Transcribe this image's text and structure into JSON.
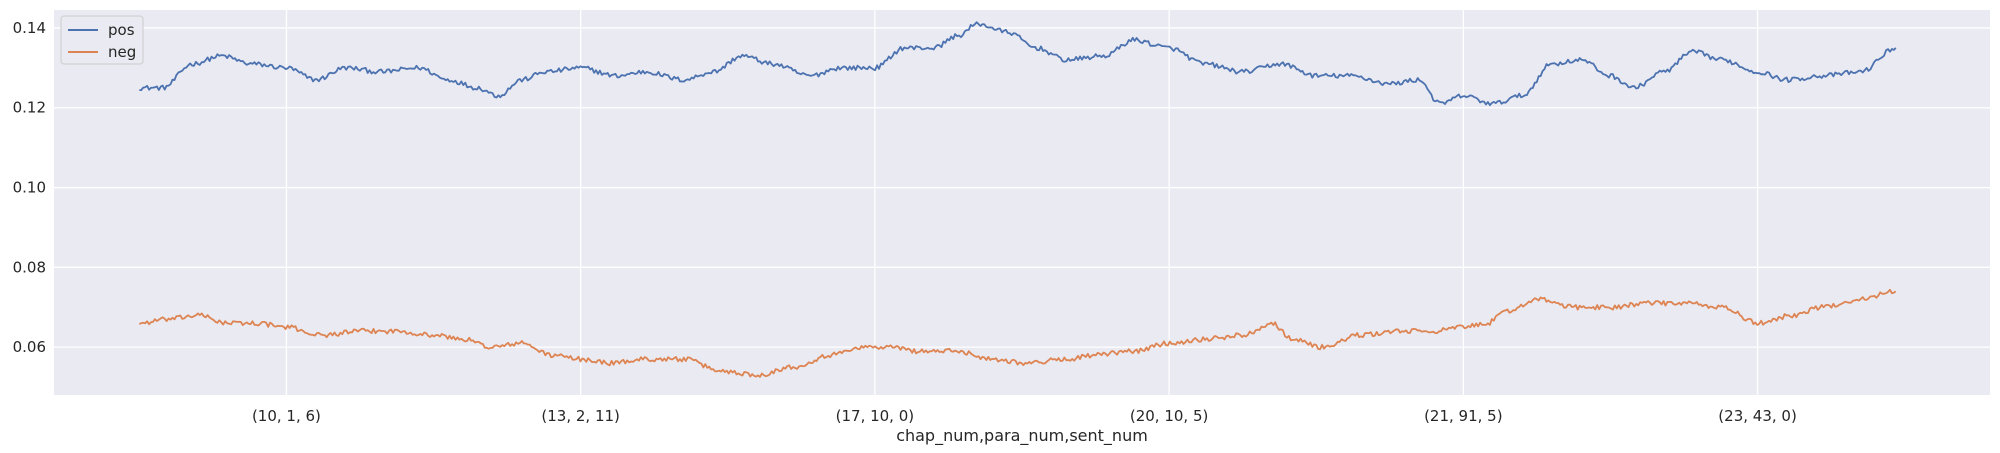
{
  "chart_data": {
    "type": "line",
    "title": "",
    "xlabel": "chap_num,para_num,sent_num",
    "ylabel": "",
    "ylim": [
      0.048,
      0.1445
    ],
    "xlim": [
      -0.29,
      6.29
    ],
    "grid": true,
    "legend": {
      "placement": "top-left",
      "entries": [
        "pos",
        "neg"
      ]
    },
    "x_ticks": [
      {
        "label": "(10, 1, 6)",
        "x": 0.5
      },
      {
        "label": "(13, 2, 11)",
        "x": 1.5
      },
      {
        "label": "(17, 10, 0)",
        "x": 2.5
      },
      {
        "label": "(20, 10, 5)",
        "x": 3.5
      },
      {
        "label": "(21, 91, 5)",
        "x": 4.5
      },
      {
        "label": "(23, 43, 0)",
        "x": 5.5
      }
    ],
    "y_ticks": [
      "0.06",
      "0.08",
      "0.10",
      "0.12",
      "0.14"
    ],
    "y_tick_values": [
      0.06,
      0.08,
      0.1,
      0.12,
      0.14
    ],
    "series": [
      {
        "name": "pos",
        "color": "#4c72b0",
        "x": [
          0.0,
          0.08,
          0.18,
          0.28,
          0.38,
          0.5,
          0.6,
          0.7,
          0.82,
          0.95,
          1.05,
          1.15,
          1.22,
          1.3,
          1.38,
          1.5,
          1.62,
          1.72,
          1.85,
          1.95,
          2.05,
          2.15,
          2.28,
          2.38,
          2.5,
          2.6,
          2.7,
          2.78,
          2.85,
          2.95,
          3.05,
          3.15,
          3.28,
          3.38,
          3.5,
          3.62,
          3.75,
          3.88,
          4.0,
          4.12,
          4.25,
          4.35,
          4.42,
          4.5,
          4.6,
          4.7,
          4.8,
          4.9,
          5.0,
          5.08,
          5.18,
          5.28,
          5.38,
          5.5,
          5.6,
          5.72,
          5.85,
          5.97
        ],
        "values": [
          0.125,
          0.125,
          0.131,
          0.133,
          0.131,
          0.13,
          0.127,
          0.13,
          0.129,
          0.13,
          0.127,
          0.125,
          0.123,
          0.127,
          0.129,
          0.13,
          0.128,
          0.129,
          0.127,
          0.129,
          0.133,
          0.131,
          0.128,
          0.13,
          0.13,
          0.135,
          0.135,
          0.138,
          0.141,
          0.139,
          0.135,
          0.132,
          0.133,
          0.137,
          0.135,
          0.131,
          0.129,
          0.131,
          0.128,
          0.128,
          0.126,
          0.127,
          0.121,
          0.123,
          0.121,
          0.123,
          0.131,
          0.132,
          0.128,
          0.125,
          0.129,
          0.134,
          0.132,
          0.129,
          0.127,
          0.128,
          0.129,
          0.135
        ]
      },
      {
        "name": "neg",
        "color": "#dd8452",
        "x": [
          0.0,
          0.1,
          0.2,
          0.3,
          0.4,
          0.5,
          0.62,
          0.75,
          0.88,
          1.0,
          1.1,
          1.2,
          1.3,
          1.4,
          1.5,
          1.6,
          1.72,
          1.85,
          1.98,
          2.1,
          2.22,
          2.35,
          2.45,
          2.55,
          2.65,
          2.78,
          2.9,
          3.02,
          3.15,
          3.25,
          3.38,
          3.5,
          3.62,
          3.75,
          3.85,
          3.92,
          4.02,
          4.15,
          4.28,
          4.4,
          4.5,
          4.58,
          4.65,
          4.75,
          4.88,
          5.0,
          5.12,
          5.25,
          5.38,
          5.5,
          5.62,
          5.72,
          5.85,
          5.97
        ],
        "values": [
          0.066,
          0.067,
          0.068,
          0.066,
          0.066,
          0.065,
          0.063,
          0.064,
          0.064,
          0.063,
          0.062,
          0.06,
          0.061,
          0.058,
          0.057,
          0.056,
          0.057,
          0.057,
          0.054,
          0.053,
          0.055,
          0.058,
          0.06,
          0.06,
          0.059,
          0.059,
          0.057,
          0.056,
          0.057,
          0.058,
          0.059,
          0.061,
          0.062,
          0.063,
          0.066,
          0.062,
          0.06,
          0.063,
          0.064,
          0.064,
          0.065,
          0.066,
          0.069,
          0.072,
          0.07,
          0.07,
          0.071,
          0.071,
          0.07,
          0.066,
          0.068,
          0.07,
          0.072,
          0.074
        ]
      }
    ]
  }
}
